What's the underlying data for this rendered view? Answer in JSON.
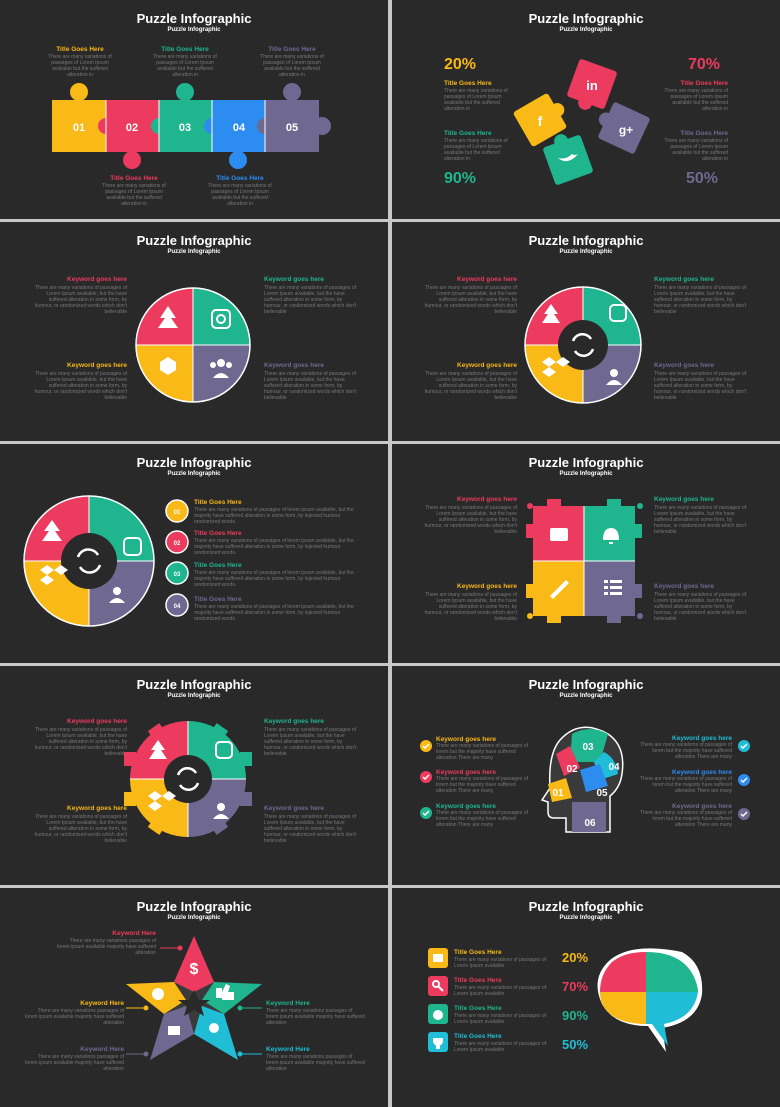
{
  "colors": {
    "yellow": "#f9b916",
    "red": "#ec3b5e",
    "teal": "#1fb58f",
    "blue": "#2d8cf0",
    "purple": "#6f6890",
    "cyan": "#1fbed6"
  },
  "title": "Puzzle Infographic",
  "subtitle": "Puzzle Infographic",
  "s1": {
    "top": [
      {
        "title": "Title Goes Here",
        "text": "There are many variations of passages of Lorem Ipsum available but the suffered alteration in"
      },
      {
        "title": "Title Goes Here",
        "text": "There are many variations of passages of Lorem Ipsum available but the suffered alteration in"
      },
      {
        "title": "Title Goes Here",
        "text": "There are many variations of passages of Lorem Ipsum available but the suffered alteration in"
      }
    ],
    "bottom": [
      {
        "title": "Title Goes Here",
        "text": "There are many variations of passages of Lorem Ipsum available but the suffered alteration in"
      },
      {
        "title": "Title Goes Here",
        "text": "There are many variations of passages of Lorem Ipsum available but the suffered alteration in"
      }
    ],
    "nums": [
      "01",
      "02",
      "03",
      "04",
      "05"
    ]
  },
  "s2": {
    "items": [
      {
        "pct": "20%",
        "title": "Title Goes Here",
        "text": "There are many variations of passages of Lorem Ipsum available but the suffered alteration in"
      },
      {
        "pct": "70%",
        "title": "Title Goes Here",
        "text": "There are many variations of passages of Lorem Ipsum available but the suffered alteration in"
      },
      {
        "pct": "90%",
        "title": "Title Goes Here",
        "text": "There are many variations of passages of Lorem Ipsum available but the suffered alteration in"
      },
      {
        "pct": "50%",
        "title": "Title Goes Here",
        "text": "There are many variations of passages of Lorem Ipsum available but the suffered alteration in"
      }
    ],
    "icons": [
      "facebook-icon",
      "linkedin-icon",
      "twitter-icon",
      "google-plus-icon"
    ]
  },
  "kw": {
    "title": "Keyword goes here",
    "text": "There are many variations of passages of Lorem Ipsum available, but the have suffered alteration in some form, by humour, or randomized words which don't believable"
  },
  "s5": {
    "items": [
      {
        "n": "01",
        "title": "Title Goes Here",
        "text": "There are many variations of passages of lorem ipsum available, but the majority have suffered alteration in some form, by injected humour randomized words."
      },
      {
        "n": "02",
        "title": "Title Goes Here",
        "text": "There are many variations of passages of lorem ipsum available, but the majority have suffered alteration in some form, by injected humour randomized words."
      },
      {
        "n": "03",
        "title": "Title Goes Here",
        "text": "There are many variations of passages of lorem ipsum available, but the majority have suffered alteration in some form, by injected humour randomized words."
      },
      {
        "n": "04",
        "title": "Title Goes Here",
        "text": "There are many variations of passages of lorem ipsum available, but the majority have suffered alteration in some form, by injected humour randomized words."
      }
    ]
  },
  "s8": {
    "title": "Keyword goes here",
    "text": "There are many variations of passages of lorem but the majority have suffered alteration There are many",
    "nums": [
      "01",
      "02",
      "03",
      "04",
      "05",
      "06"
    ]
  },
  "s9": {
    "title": "Keyword Here",
    "text": "There are many variations passages of lorem ipsum available majority have suffered alteration"
  },
  "s10": {
    "items": [
      {
        "title": "Title Goes Here",
        "text": "There are many variations of passages of Lorem Ipsum available",
        "pct": "20%"
      },
      {
        "title": "Title Goes Here",
        "text": "There are many variations of passages of Lorem Ipsum available",
        "pct": "70%"
      },
      {
        "title": "Title Goes Here",
        "text": "There are many variations of passages of Lorem Ipsum available",
        "pct": "90%"
      },
      {
        "title": "Title Goes Here",
        "text": "There are many variations of passages of Lorem Ipsum available",
        "pct": "50%"
      }
    ]
  }
}
